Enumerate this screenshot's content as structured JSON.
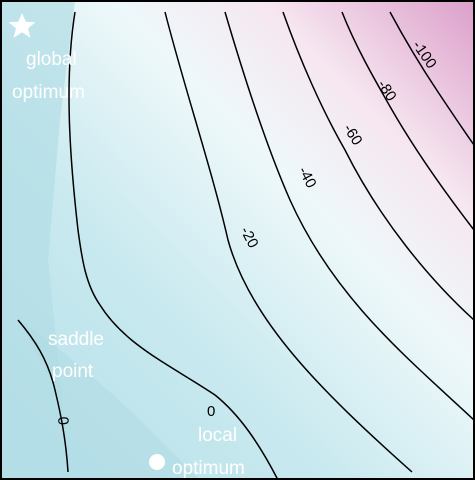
{
  "chart_data": {
    "type": "contour",
    "title": "",
    "xlabel": "",
    "ylabel": "",
    "grid": false,
    "colors": {
      "low_fill": "#b5dfe8",
      "mid_fill": "#eef8fa",
      "high_fill": "#e0a6cc",
      "line": "#000000",
      "annotation": "#ffffff",
      "frame": "#000000"
    },
    "contour_levels": [
      {
        "value": 0,
        "label": "0"
      },
      {
        "value": -20,
        "label": "-20"
      },
      {
        "value": -40,
        "label": "-40"
      },
      {
        "value": -60,
        "label": "-60"
      },
      {
        "value": -80,
        "label": "-80"
      },
      {
        "value": -100,
        "label": "-100"
      }
    ],
    "annotations": [
      {
        "name": "global-optimum",
        "lines": [
          "global",
          "optimum"
        ],
        "marker": "star-icon"
      },
      {
        "name": "saddle-point",
        "lines": [
          "saddle",
          "point"
        ],
        "marker": ""
      },
      {
        "name": "local-optimum",
        "lines": [
          "local",
          "optimum"
        ],
        "marker": "dot-icon"
      }
    ]
  }
}
